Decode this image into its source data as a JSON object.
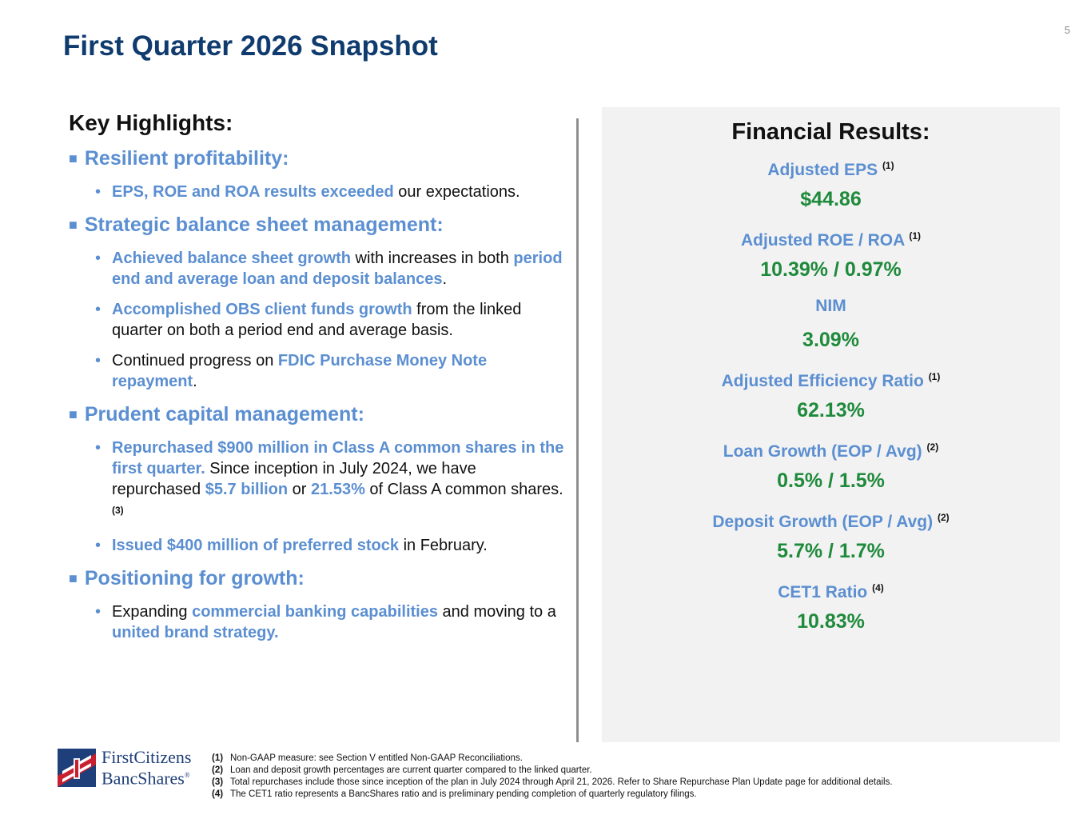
{
  "page_number": "5",
  "title": "First Quarter 2026 Snapshot",
  "highlights": {
    "heading": "Key Highlights:",
    "sections": [
      {
        "title": "Resilient profitability:",
        "bullets": [
          [
            {
              "t": "EPS, ROE and ROA results exceeded",
              "hl": true
            },
            {
              "t": " our expectations."
            }
          ]
        ]
      },
      {
        "title": "Strategic balance sheet management:",
        "bullets": [
          [
            {
              "t": "Achieved balance sheet growth",
              "hl": true
            },
            {
              "t": " with increases in both "
            },
            {
              "t": "period end and average loan and deposit balances",
              "hl": true
            },
            {
              "t": "."
            }
          ],
          [
            {
              "t": "Accomplished OBS client funds growth",
              "hl": true
            },
            {
              "t": " from the linked quarter on both a period end and average basis."
            }
          ],
          [
            {
              "t": "Continued progress on "
            },
            {
              "t": "FDIC Purchase Money Note repayment",
              "hl": true
            },
            {
              "t": "."
            }
          ]
        ]
      },
      {
        "title": "Prudent capital management:",
        "bullets": [
          [
            {
              "t": "Repurchased $900 million in Class A common shares in the first quarter.",
              "hl": true
            },
            {
              "t": " Since inception in July 2024, we have repurchased "
            },
            {
              "t": "$5.7 billion",
              "hl": true
            },
            {
              "t": " or "
            },
            {
              "t": "21.53%",
              "hl": true
            },
            {
              "t": " of Class A common shares. "
            },
            {
              "t": "(3)",
              "sup": true
            }
          ],
          [
            {
              "t": "Issued $400 million of preferred stock",
              "hl": true
            },
            {
              "t": " in February."
            }
          ]
        ]
      },
      {
        "title": "Positioning for growth:",
        "bullets": [
          [
            {
              "t": "Expanding "
            },
            {
              "t": "commercial banking capabilities",
              "hl": true
            },
            {
              "t": " and moving to a "
            },
            {
              "t": "united brand strategy.",
              "hl": true
            }
          ]
        ]
      }
    ]
  },
  "financial_results": {
    "heading": "Financial Results:",
    "metrics": [
      {
        "label": "Adjusted EPS",
        "note": "(1)",
        "value": "$44.86"
      },
      {
        "label": "Adjusted ROE / ROA",
        "note": "(1)",
        "value": "10.39% / 0.97%"
      },
      {
        "label": "NIM",
        "note": "",
        "value": "3.09%"
      },
      {
        "label": "Adjusted Efficiency Ratio",
        "note": "(1)",
        "value": "62.13%"
      },
      {
        "label": "Loan Growth (EOP / Avg)",
        "note": "(2)",
        "value": "0.5% / 1.5%"
      },
      {
        "label": "Deposit Growth (EOP / Avg)",
        "note": "(2)",
        "value": "5.7% / 1.7%"
      },
      {
        "label": "CET1 Ratio",
        "note": "(4)",
        "value": "10.83%"
      }
    ]
  },
  "logo": {
    "line1": "FirstCitizens",
    "line2": "BancShares",
    "mark": "®",
    "colors": {
      "red": "#c8202f",
      "blue": "#1f3f7a"
    }
  },
  "footnotes": [
    {
      "num": "(1)",
      "text": "Non-GAAP measure: see Section V entitled Non-GAAP Reconciliations."
    },
    {
      "num": "(2)",
      "text": "Loan and deposit growth percentages are current quarter compared to the linked quarter."
    },
    {
      "num": "(3)",
      "text": "Total repurchases include those since inception of the plan in July 2024 through April 21, 2026. Refer to Share Repurchase Plan Update page for additional details."
    },
    {
      "num": "(4)",
      "text": "The CET1 ratio represents a BancShares ratio and is preliminary pending completion of quarterly regulatory filings."
    }
  ],
  "colors": {
    "title": "#0f3b6e",
    "accent_blue": "#5b8fd1",
    "value_green": "#1f8a3b",
    "panel_bg": "#f2f2f2"
  }
}
